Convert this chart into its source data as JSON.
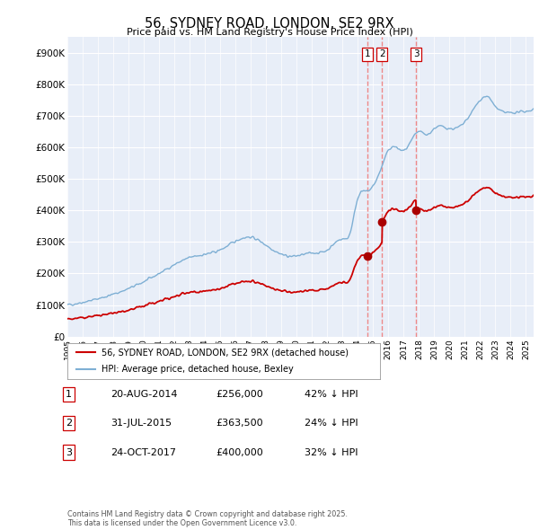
{
  "title": "56, SYDNEY ROAD, LONDON, SE2 9RX",
  "subtitle": "Price paid vs. HM Land Registry's House Price Index (HPI)",
  "ylim": [
    0,
    950000
  ],
  "yticks": [
    0,
    100000,
    200000,
    300000,
    400000,
    500000,
    600000,
    700000,
    800000,
    900000
  ],
  "ytick_labels": [
    "£0",
    "£100K",
    "£200K",
    "£300K",
    "£400K",
    "£500K",
    "£600K",
    "£700K",
    "£800K",
    "£900K"
  ],
  "sale_year_floats": [
    2014.64,
    2015.58,
    2017.81
  ],
  "sale_prices": [
    256000,
    363500,
    400000
  ],
  "sale_labels": [
    "1",
    "2",
    "3"
  ],
  "vline_color": "#ee8888",
  "hpi_color": "#7eafd4",
  "sale_line_color": "#cc0000",
  "sale_dot_color": "#aa0000",
  "legend_entries": [
    "56, SYDNEY ROAD, LONDON, SE2 9RX (detached house)",
    "HPI: Average price, detached house, Bexley"
  ],
  "table_rows": [
    [
      "1",
      "20-AUG-2014",
      "£256,000",
      "42% ↓ HPI"
    ],
    [
      "2",
      "31-JUL-2015",
      "£363,500",
      "24% ↓ HPI"
    ],
    [
      "3",
      "24-OCT-2017",
      "£400,000",
      "32% ↓ HPI"
    ]
  ],
  "footnote": "Contains HM Land Registry data © Crown copyright and database right 2025.\nThis data is licensed under the Open Government Licence v3.0.",
  "background_color": "#ffffff",
  "plot_bg_color": "#e8eef8"
}
